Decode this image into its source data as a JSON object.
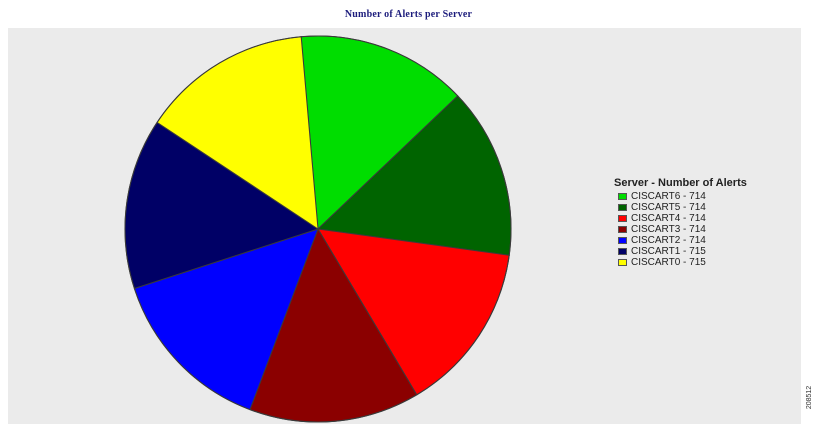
{
  "chart_data": {
    "type": "pie",
    "title": "Number of Alerts per Server",
    "legend_title": "Server - Number of Alerts",
    "legend_position": "right",
    "slices": [
      {
        "label": "CISCART6 - 714",
        "value": 714,
        "color": "#00dd00"
      },
      {
        "label": "CISCART5 - 714",
        "value": 714,
        "color": "#006400"
      },
      {
        "label": "CISCART4 - 714",
        "value": 714,
        "color": "#ff0000"
      },
      {
        "label": "CISCART3 - 714",
        "value": 714,
        "color": "#8b0000"
      },
      {
        "label": "CISCART2 - 714",
        "value": 714,
        "color": "#0000ff"
      },
      {
        "label": "CISCART1 - 715",
        "value": 715,
        "color": "#000066"
      },
      {
        "label": "CISCART0 - 715",
        "value": 715,
        "color": "#ffff00"
      }
    ]
  },
  "figure_id": "208512"
}
